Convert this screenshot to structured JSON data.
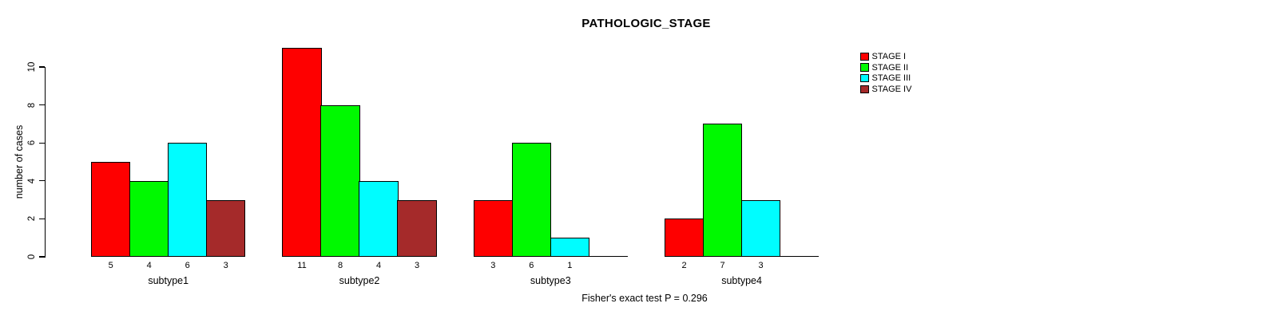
{
  "title": "PATHOLOGIC_STAGE",
  "footnote": "Fisher's exact test P = 0.296",
  "chart_data": {
    "type": "bar",
    "title": "PATHOLOGIC_STAGE",
    "categories": [
      "subtype1",
      "subtype2",
      "subtype3",
      "subtype4"
    ],
    "series": [
      {
        "name": "STAGE I",
        "color": "#fe0000",
        "values": [
          5,
          11,
          3,
          2
        ]
      },
      {
        "name": "STAGE II",
        "color": "#00f900",
        "values": [
          4,
          8,
          6,
          7
        ]
      },
      {
        "name": "STAGE III",
        "color": "#00fdff",
        "values": [
          6,
          4,
          1,
          3
        ]
      },
      {
        "name": "STAGE IV",
        "color": "#a52a2a",
        "values": [
          3,
          3,
          0,
          0
        ]
      }
    ],
    "bar_value_labels": {
      "subtype1": [
        "5",
        "4",
        "6",
        "3"
      ],
      "subtype2": [
        "11",
        "8",
        "4",
        "3"
      ],
      "subtype3": [
        "3",
        "6",
        "1",
        ""
      ],
      "subtype4": [
        "2",
        "7",
        "3",
        ""
      ]
    },
    "xlabel": "",
    "ylabel": "number of cases",
    "yticks": [
      0,
      2,
      4,
      6,
      8,
      10
    ],
    "ylim": [
      0,
      11
    ],
    "grid": "off",
    "legend_position": "top-right",
    "annotation": "Fisher's exact test P = 0.296"
  }
}
